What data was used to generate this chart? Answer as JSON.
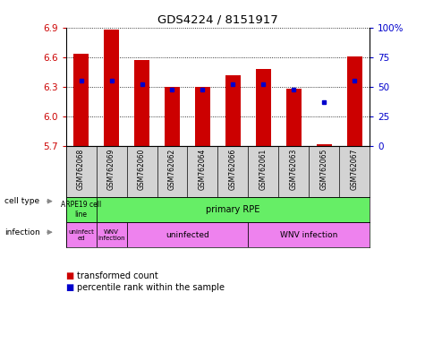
{
  "title": "GDS4224 / 8151917",
  "samples": [
    "GSM762068",
    "GSM762069",
    "GSM762060",
    "GSM762062",
    "GSM762064",
    "GSM762066",
    "GSM762061",
    "GSM762063",
    "GSM762065",
    "GSM762067"
  ],
  "transformed_counts": [
    6.63,
    6.88,
    6.57,
    6.3,
    6.3,
    6.42,
    6.48,
    6.28,
    5.72,
    6.61
  ],
  "percentile_ranks": [
    55,
    55,
    52,
    48,
    48,
    52,
    52,
    48,
    37,
    55
  ],
  "ylim_left": [
    5.7,
    6.9
  ],
  "ylim_right": [
    0,
    100
  ],
  "yticks_left": [
    5.7,
    6.0,
    6.3,
    6.6,
    6.9
  ],
  "yticks_right": [
    0,
    25,
    50,
    75,
    100
  ],
  "bar_color": "#cc0000",
  "dot_color": "#0000cc",
  "bar_bottom": 5.7,
  "cell_type_labels": [
    "ARPE19 cell\nline",
    "primary RPE"
  ],
  "cell_type_color": "#66ee66",
  "infection_labels": [
    "uninfect\ned",
    "WNV\ninfection",
    "uninfected",
    "WNV infection"
  ],
  "infection_color": "#ee82ee",
  "sample_bg_color": "#d3d3d3",
  "legend_items": [
    "transformed count",
    "percentile rank within the sample"
  ],
  "legend_colors": [
    "#cc0000",
    "#0000cc"
  ],
  "background_color": "#ffffff",
  "tick_color_left": "#cc0000",
  "tick_color_right": "#0000cc",
  "arrow_color": "#888888",
  "label_color": "#000000"
}
